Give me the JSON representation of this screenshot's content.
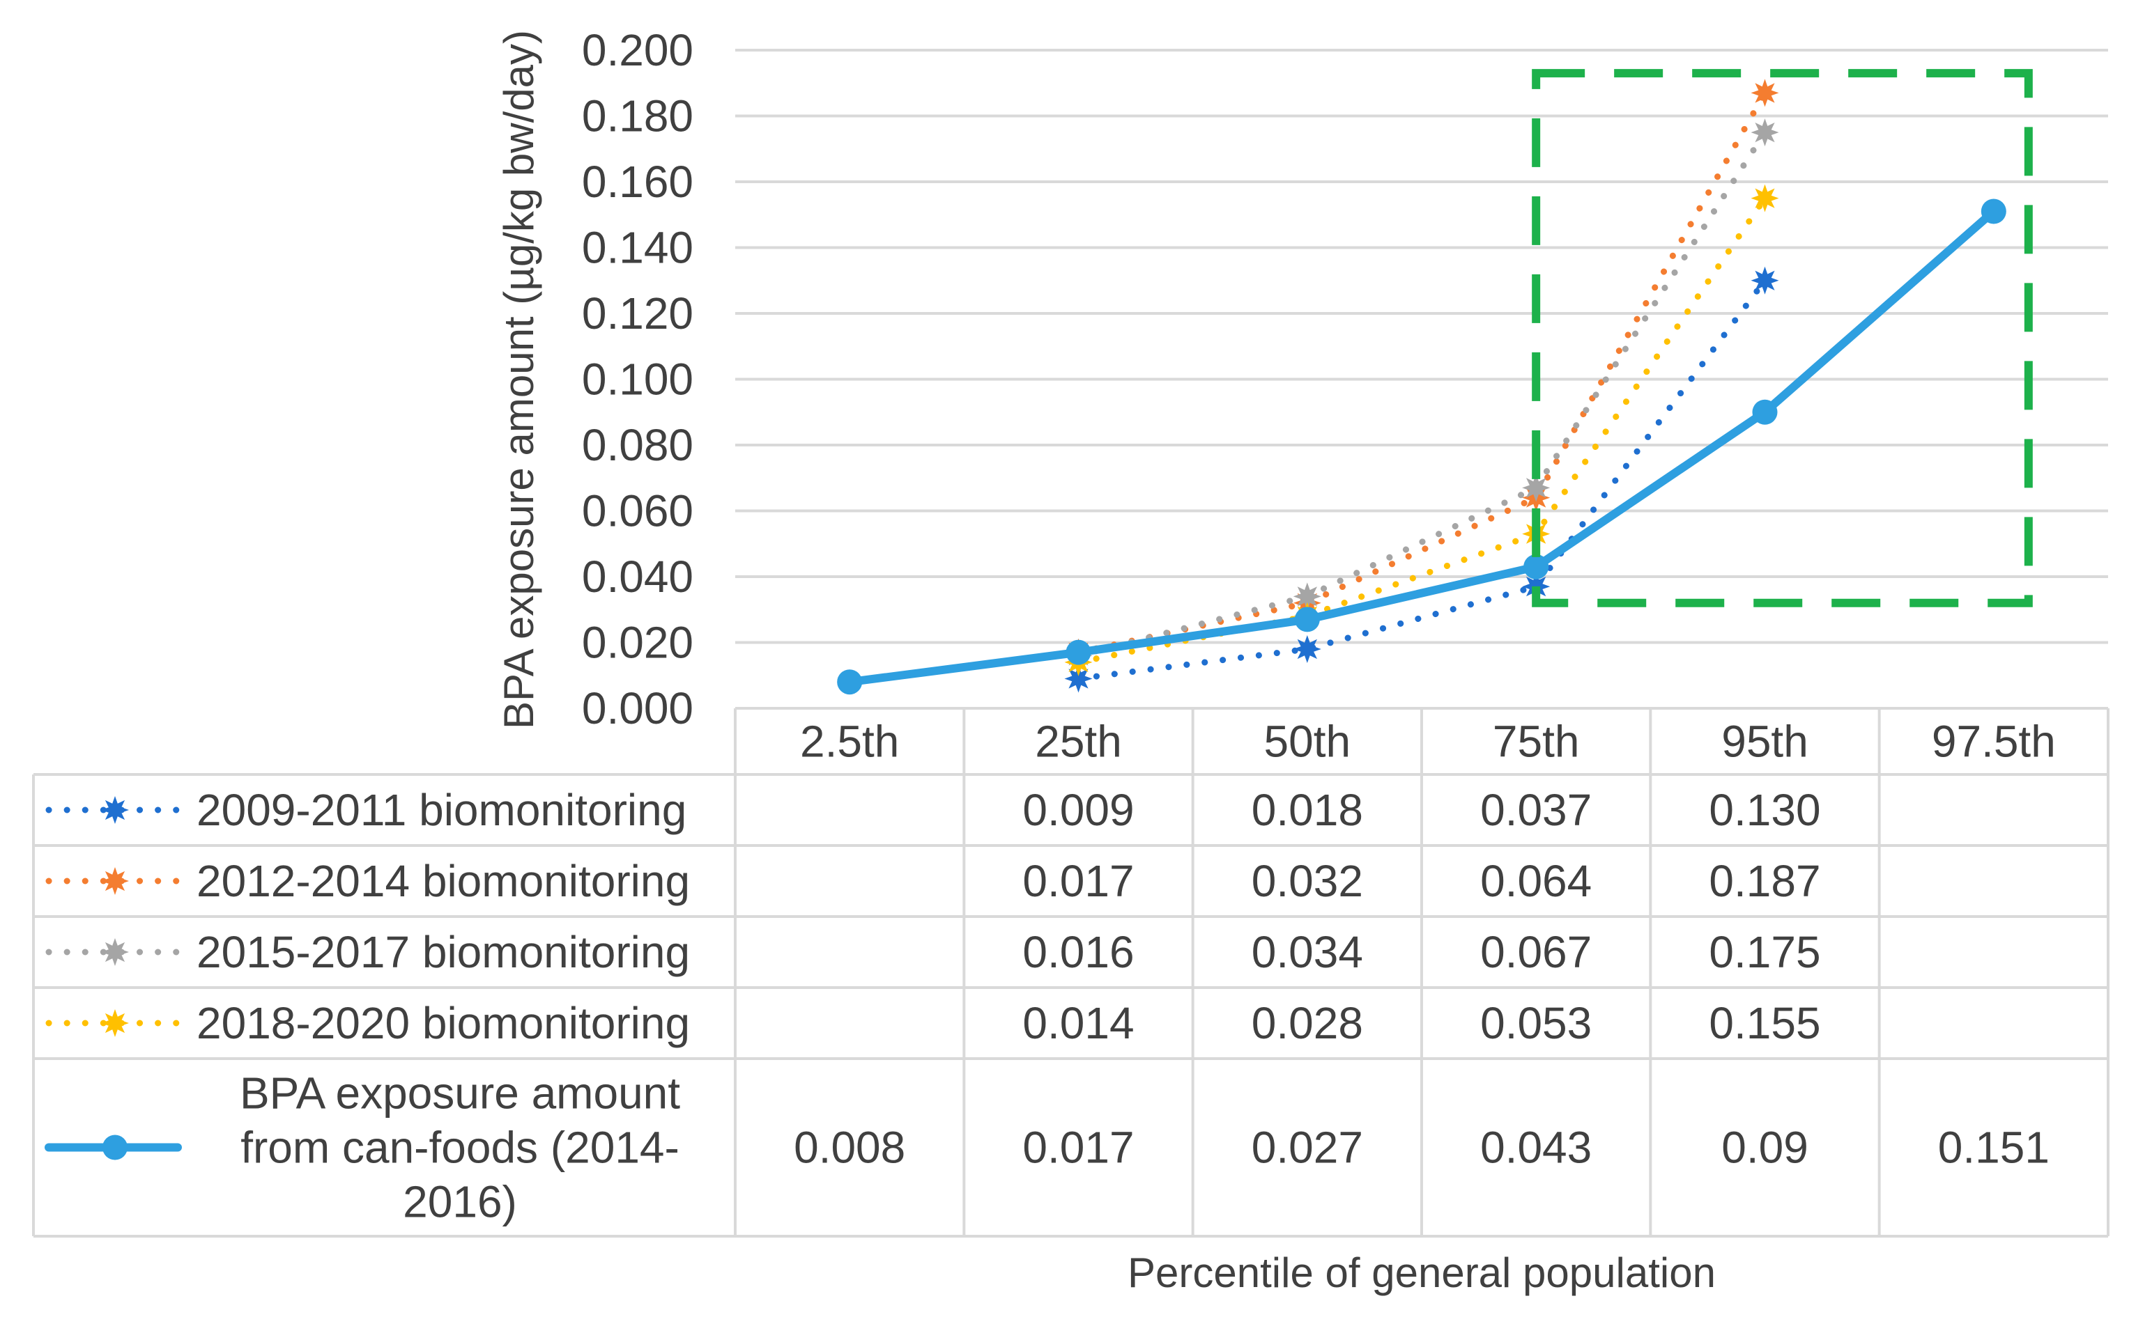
{
  "chart_data": {
    "type": "line",
    "ylabel": "BPA exposure amount (µg/kg bw/day)",
    "xlabel": "Percentile of general population",
    "ylim": [
      0,
      0.2
    ],
    "y_ticks": [
      "0.000",
      "0.020",
      "0.040",
      "0.060",
      "0.080",
      "0.100",
      "0.120",
      "0.140",
      "0.160",
      "0.180",
      "0.200"
    ],
    "categories": [
      "2.5th",
      "25th",
      "50th",
      "75th",
      "95th",
      "97.5th"
    ],
    "highlight_box": {
      "x_from": "75th",
      "x_to": "97.5th",
      "y_from": 0.032,
      "y_to": 0.193
    },
    "series": [
      {
        "name": "2009-2011 biomonitoring",
        "color": "#1F6FD0",
        "style": "dotted-star",
        "values": [
          null,
          0.009,
          0.018,
          0.037,
          0.13,
          null
        ],
        "labels": [
          "",
          "0.009",
          "0.018",
          "0.037",
          "0.130",
          ""
        ]
      },
      {
        "name": "2012-2014 biomonitoring",
        "color": "#F47D30",
        "style": "dotted-star",
        "values": [
          null,
          0.017,
          0.032,
          0.064,
          0.187,
          null
        ],
        "labels": [
          "",
          "0.017",
          "0.032",
          "0.064",
          "0.187",
          ""
        ]
      },
      {
        "name": "2015-2017 biomonitoring",
        "color": "#A5A5A5",
        "style": "dotted-star",
        "values": [
          null,
          0.016,
          0.034,
          0.067,
          0.175,
          null
        ],
        "labels": [
          "",
          "0.016",
          "0.034",
          "0.067",
          "0.175",
          ""
        ]
      },
      {
        "name": "2018-2020 biomonitoring",
        "color": "#FFC000",
        "style": "dotted-star",
        "values": [
          null,
          0.014,
          0.028,
          0.053,
          0.155,
          null
        ],
        "labels": [
          "",
          "0.014",
          "0.028",
          "0.053",
          "0.155",
          ""
        ]
      },
      {
        "name": "BPA exposure amount from can-foods (2014-2016)",
        "name_lines": [
          "BPA exposure amount",
          "from can-foods (2014-",
          "2016)"
        ],
        "color": "#2E9FE0",
        "style": "solid-circle",
        "values": [
          0.008,
          0.017,
          0.027,
          0.043,
          0.09,
          0.151
        ],
        "labels": [
          "0.008",
          "0.017",
          "0.027",
          "0.043",
          "0.09",
          "0.151"
        ]
      }
    ]
  }
}
